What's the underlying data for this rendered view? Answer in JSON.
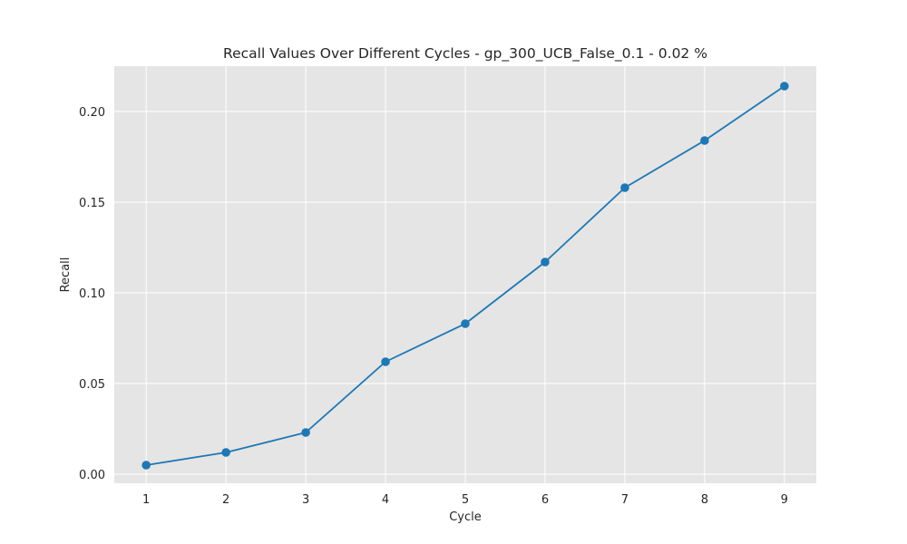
{
  "chart_data": {
    "type": "line",
    "title": "Recall Values Over Different Cycles - gp_300_UCB_False_0.1 - 0.02 %",
    "xlabel": "Cycle",
    "ylabel": "Recall",
    "x": [
      1,
      2,
      3,
      4,
      5,
      6,
      7,
      8,
      9
    ],
    "xticks": [
      "1",
      "2",
      "3",
      "4",
      "5",
      "6",
      "7",
      "8",
      "9"
    ],
    "xlim": [
      0.6,
      9.4
    ],
    "yticks": [
      "0.00",
      "0.05",
      "0.10",
      "0.15",
      "0.20"
    ],
    "ylim": [
      -0.005,
      0.225
    ],
    "grid": true,
    "series": [
      {
        "values": [
          0.005,
          0.012,
          0.023,
          0.062,
          0.083,
          0.117,
          0.158,
          0.184,
          0.214
        ],
        "color": "#1f77b4",
        "marker": "circle"
      }
    ],
    "colors": {
      "plot_background": "#e5e5e5",
      "grid": "#ffffff",
      "line": "#1f77b4"
    }
  }
}
